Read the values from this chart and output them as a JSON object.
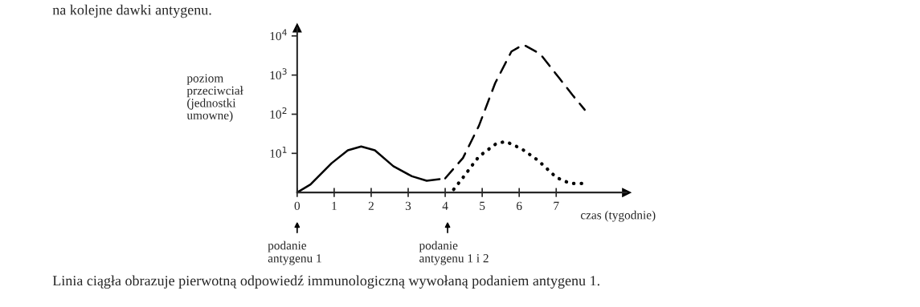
{
  "chart_data": {
    "type": "line",
    "title": "na kolejne dawki antygenu.",
    "xlabel": "czas (tygodnie)",
    "ylabel": "poziom\nprzeciwciał\n(jednostki\numowne)",
    "log": "y",
    "xlim": [
      0,
      8.9
    ],
    "ylim": [
      1,
      16000
    ],
    "xticks": [
      0,
      1,
      2,
      3,
      4,
      5,
      6,
      7
    ],
    "yticks": [
      {
        "value": 10,
        "label": "10$^{1}$"
      },
      {
        "value": 100,
        "label": "10$^{2}$"
      },
      {
        "value": 1000,
        "label": "10$^{3}$"
      },
      {
        "value": 10000,
        "label": "10$^{4}$"
      }
    ],
    "grid": false,
    "marker": "none",
    "series": [
      {
        "color": "#000000",
        "line_style": "solid",
        "x": [
          0,
          0.36,
          0.93,
          1.37,
          1.73,
          2.1,
          2.6,
          3.1,
          3.5,
          3.85
        ],
        "values": [
          1,
          1.6,
          5.6,
          12,
          15,
          12,
          4.7,
          2.6,
          2.0,
          2.2
        ]
      },
      {
        "color": "#000000",
        "line_style": "dashed",
        "x": [
          4.0,
          4.48,
          4.91,
          5.35,
          5.79,
          6.11,
          6.57,
          7.08,
          7.44,
          7.77
        ],
        "values": [
          2.3,
          7.6,
          50,
          620,
          4000,
          6000,
          3450,
          840,
          310,
          130
        ]
      },
      {
        "color": "#000000",
        "line_style": "dotted",
        "x": [
          4.23,
          4.48,
          4.91,
          5.39,
          5.64,
          6.07,
          6.51,
          7.01,
          7.38,
          7.77
        ],
        "values": [
          1.2,
          2.4,
          8.3,
          18,
          20,
          13,
          6.6,
          2.4,
          1.7,
          1.7
        ]
      }
    ],
    "annotations": [
      "podanie\nantygenu 1",
      "podanie\nantygenu 1 i 2",
      "Linia ciągła obrazuje pierwotną odpowiedź immunologiczną wywołaną podaniem antygenu 1."
    ]
  }
}
